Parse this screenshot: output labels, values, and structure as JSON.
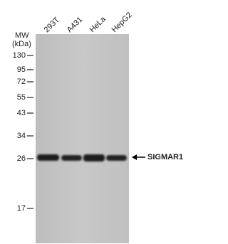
{
  "mw_label": "MW",
  "mw_unit": "(kDa)",
  "lanes": [
    "293T",
    "A431",
    "HeLa",
    "HepG2"
  ],
  "markers": [
    130,
    95,
    72,
    55,
    43,
    34,
    26,
    17
  ],
  "band_label": "SIGMAR1"
}
